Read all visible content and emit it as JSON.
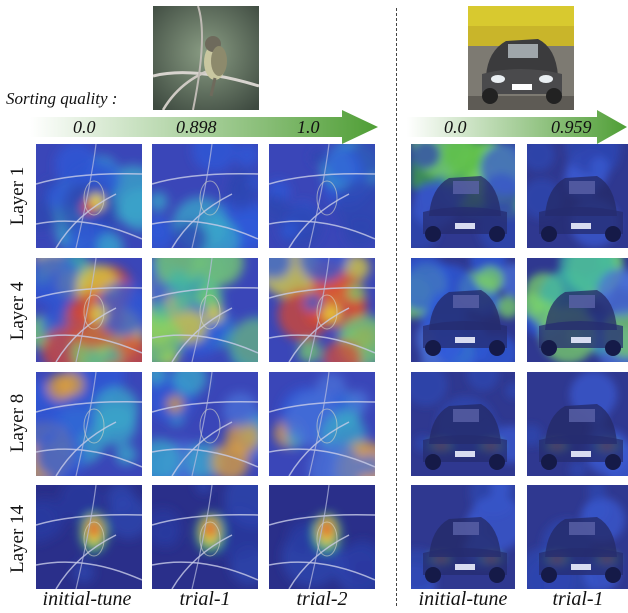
{
  "figure": {
    "sorting_quality_label": "Sorting quality :",
    "left_arrow": {
      "values": [
        "0.0",
        "0.898",
        "1.0"
      ],
      "color": "#5aa83f"
    },
    "right_arrow": {
      "values": [
        "0.0",
        "0.959"
      ],
      "color": "#5aa83f"
    },
    "rows": [
      "Layer 1",
      "Layer 4",
      "Layer 8",
      "Layer 14"
    ],
    "left_columns": [
      "initial-tune",
      "trial-1",
      "trial-2"
    ],
    "right_columns": [
      "initial-tune",
      "trial-1"
    ]
  }
}
